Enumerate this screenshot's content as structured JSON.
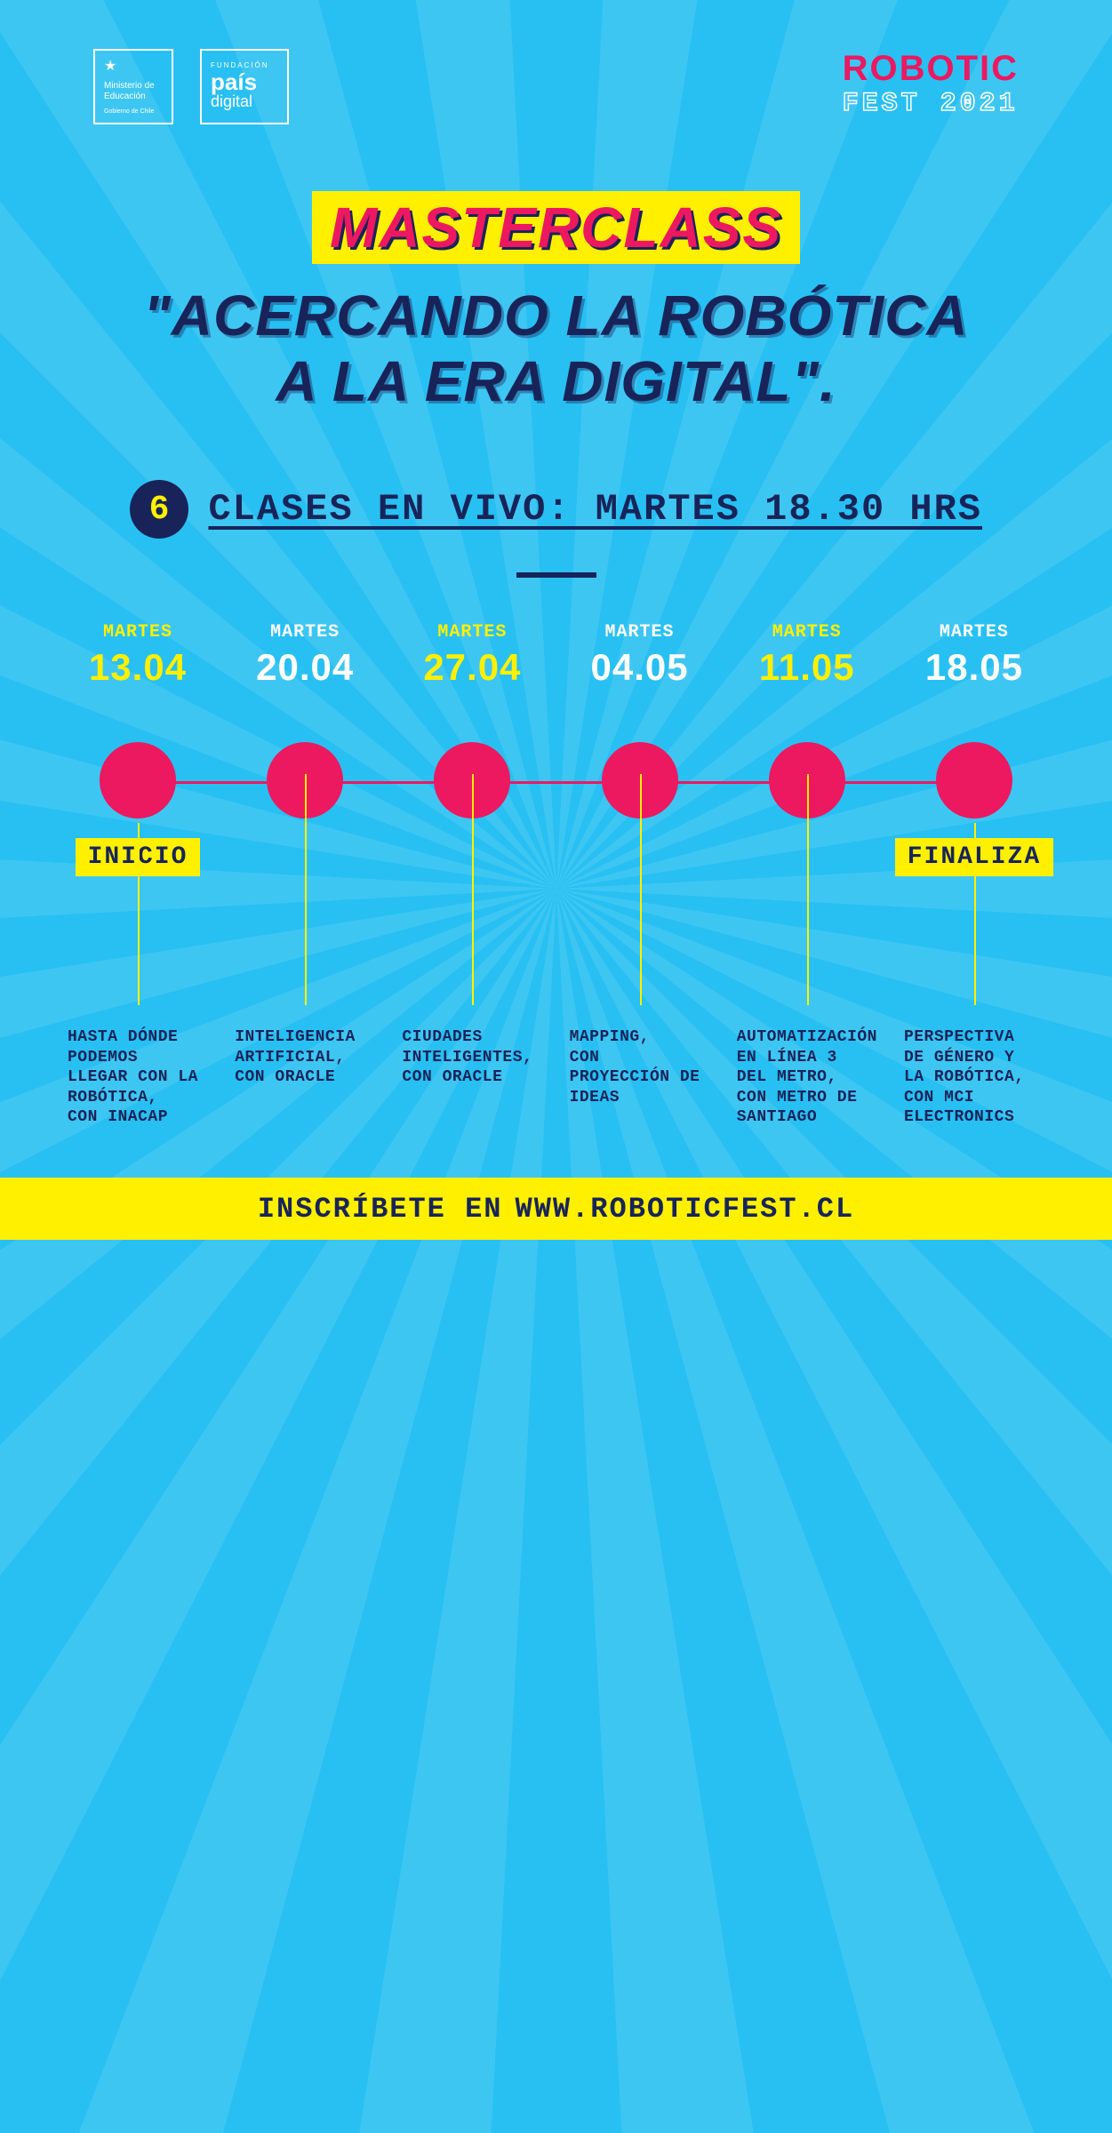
{
  "colors": {
    "bg": "#28c0f2",
    "navy": "#182459",
    "pink": "#ec1860",
    "yellow": "#fff000",
    "white": "#ffffff"
  },
  "logos": {
    "ministerio_top": "Ministerio de Educación",
    "ministerio_bottom": "Gobierno de Chile",
    "pais_small": "FUNDACIÓN",
    "pais_big": "país",
    "pais_med": "digital"
  },
  "brand": {
    "line1": "ROBOTIC",
    "line2": "FEST 2021"
  },
  "title": {
    "masterclass": "MASTERCLASS",
    "subtitle_l1": "\"ACERCANDO LA ROBÓTICA",
    "subtitle_l2": "A LA ERA DIGITAL\"."
  },
  "schedule": {
    "badge": "6",
    "text": "CLASES EN VIVO: MARTES 18.30 HRS"
  },
  "timeline": {
    "day_label": "MARTES",
    "phase_start": "INICIO",
    "phase_end": "FINALIZA",
    "dot_color": "#ec1860",
    "items": [
      {
        "date": "13.04",
        "highlight": true,
        "title": "HASTA DÓNDE PODEMOS LLEGAR CON LA ROBÓTICA,",
        "by": "CON INACAP"
      },
      {
        "date": "20.04",
        "highlight": false,
        "title": "INTELIGENCIA ARTIFICIAL,",
        "by": "CON ORACLE"
      },
      {
        "date": "27.04",
        "highlight": true,
        "title": "CIUDADES INTELIGENTES,",
        "by": "CON ORACLE"
      },
      {
        "date": "04.05",
        "highlight": false,
        "title": "MAPPING,",
        "by": "CON PROYECCIÓN DE IDEAS"
      },
      {
        "date": "11.05",
        "highlight": true,
        "title": "AUTOMATIZACIÓN EN LÍNEA 3 DEL METRO,",
        "by": "CON METRO DE SANTIAGO"
      },
      {
        "date": "18.05",
        "highlight": false,
        "title": "PERSPECTIVA DE GÉNERO Y LA ROBÓTICA,",
        "by": "CON MCI ELECTRONICS"
      }
    ]
  },
  "footer": {
    "cta": "INSCRÍBETE EN",
    "url": "WWW.ROBOTICFEST.CL"
  }
}
